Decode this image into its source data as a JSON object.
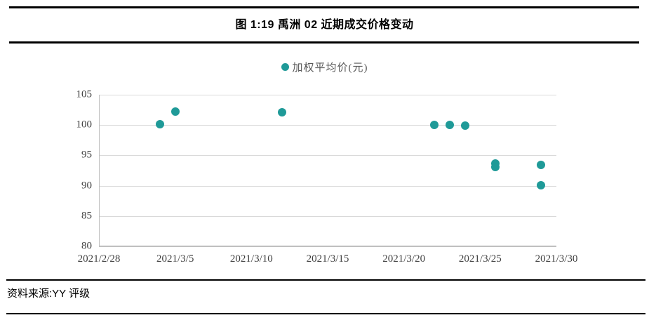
{
  "header": {
    "title": "图 1:19 禹洲 02 近期成交价格变动"
  },
  "footer": {
    "source": "资料来源:YY 评级"
  },
  "chart_data": {
    "type": "scatter",
    "title": "图 1:19 禹洲 02 近期成交价格变动",
    "legend_position": "top-center",
    "grid": "horizontal",
    "series": [
      {
        "name": "加权平均价(元)",
        "color": "#1F9A98",
        "points": [
          {
            "date": "2021/3/4",
            "value": 100.1
          },
          {
            "date": "2021/3/5",
            "value": 102.2
          },
          {
            "date": "2021/3/12",
            "value": 102.1
          },
          {
            "date": "2021/3/22",
            "value": 100.0
          },
          {
            "date": "2021/3/23",
            "value": 100.0
          },
          {
            "date": "2021/3/24",
            "value": 99.9
          },
          {
            "date": "2021/3/26",
            "value": 93.7
          },
          {
            "date": "2021/3/26",
            "value": 93.1
          },
          {
            "date": "2021/3/29",
            "value": 93.4
          },
          {
            "date": "2021/3/29",
            "value": 90.1
          }
        ]
      }
    ],
    "x_ticks": [
      "2021/2/28",
      "2021/3/5",
      "2021/3/10",
      "2021/3/15",
      "2021/3/20",
      "2021/3/25",
      "2021/3/30"
    ],
    "y_ticks": [
      105,
      100,
      95,
      90,
      85,
      80
    ],
    "ylim": [
      80,
      105
    ],
    "xlim_days": [
      0,
      30
    ],
    "colors": {
      "point": "#1F9A98",
      "gridline": "#D9D9D9",
      "axis": "#BFBFBF",
      "tick_text": "#3F3F3F",
      "legend_text": "#595959"
    }
  }
}
